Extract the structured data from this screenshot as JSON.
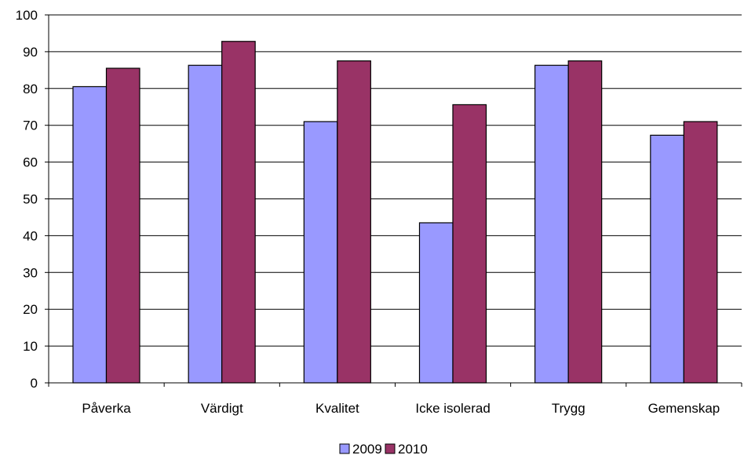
{
  "chart_data": {
    "type": "bar",
    "categories": [
      "Påverka",
      "Värdigt",
      "Kvalitet",
      "Icke isolerad",
      "Trygg",
      "Gemenskap"
    ],
    "series": [
      {
        "name": "2009",
        "values": [
          80.5,
          86.3,
          71.0,
          43.5,
          86.3,
          67.3
        ],
        "color": "#9999ff"
      },
      {
        "name": "2010",
        "values": [
          85.5,
          92.8,
          87.5,
          75.6,
          87.5,
          71.0
        ],
        "color": "#993366"
      }
    ],
    "yticks": [
      "0",
      "10",
      "20",
      "30",
      "40",
      "50",
      "60",
      "70",
      "80",
      "90",
      "100"
    ],
    "ylim": [
      0,
      100
    ],
    "grid": true,
    "legend_position": "bottom"
  }
}
